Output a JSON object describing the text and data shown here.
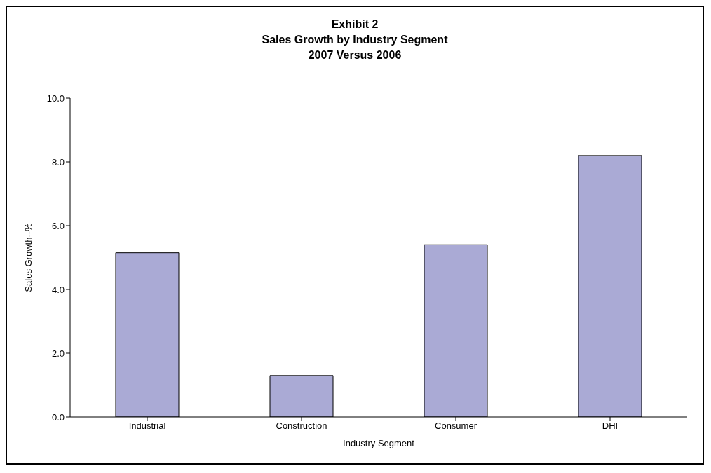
{
  "chart_data": {
    "type": "bar",
    "title": "Exhibit 2\nSales Growth by Industry Segment\n2007 Versus 2006",
    "xlabel": "Industry Segment",
    "ylabel": "Sales Growth--%",
    "categories": [
      "Industrial",
      "Construction",
      "Consumer",
      "DHI"
    ],
    "values": [
      5.15,
      1.3,
      5.4,
      8.2
    ],
    "color": "#aaaad5",
    "ylim": [
      0,
      10
    ],
    "yticks": [
      {
        "value": 0,
        "label": "0.0"
      },
      {
        "value": 2,
        "label": "2.0"
      },
      {
        "value": 4,
        "label": "4.0"
      },
      {
        "value": 6,
        "label": "6.0"
      },
      {
        "value": 8,
        "label": "8.0"
      },
      {
        "value": 10,
        "label": "10.0"
      }
    ],
    "grid": false,
    "legend": false
  }
}
